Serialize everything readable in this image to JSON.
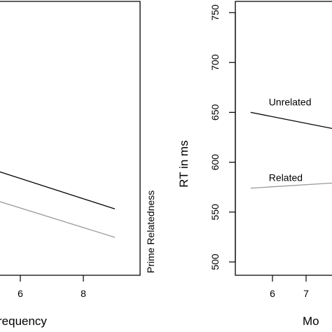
{
  "chart_data": [
    {
      "type": "line",
      "title": "",
      "xlabel": "requency",
      "ylabel": "",
      "xticks": [
        6,
        8
      ],
      "xlim": [
        3.4,
        9.2
      ],
      "ylim": [
        500,
        760
      ],
      "yticks": [],
      "series": [
        {
          "name": "",
          "color": "#000000",
          "x": [
            3.4,
            9.0
          ],
          "y": [
            617,
            563
          ]
        },
        {
          "name": "",
          "color": "#999999",
          "x": [
            3.4,
            9.0
          ],
          "y": [
            588,
            536
          ]
        }
      ]
    },
    {
      "type": "line",
      "title": "",
      "xlabel": "Mo",
      "ylabel": "RT in ms",
      "xticks": [
        6,
        7
      ],
      "yticks": [
        500,
        550,
        600,
        650,
        700,
        750
      ],
      "xlim": [
        5.1,
        8.2
      ],
      "ylim": [
        490,
        760
      ],
      "series": [
        {
          "name": "Unrelated",
          "color": "#000000",
          "x": [
            5.35,
            8.2
          ],
          "y": [
            650,
            631
          ]
        },
        {
          "name": "Related",
          "color": "#999999",
          "x": [
            5.35,
            8.2
          ],
          "y": [
            574,
            580
          ]
        }
      ]
    }
  ],
  "middle_label": "Prime Relatedness"
}
